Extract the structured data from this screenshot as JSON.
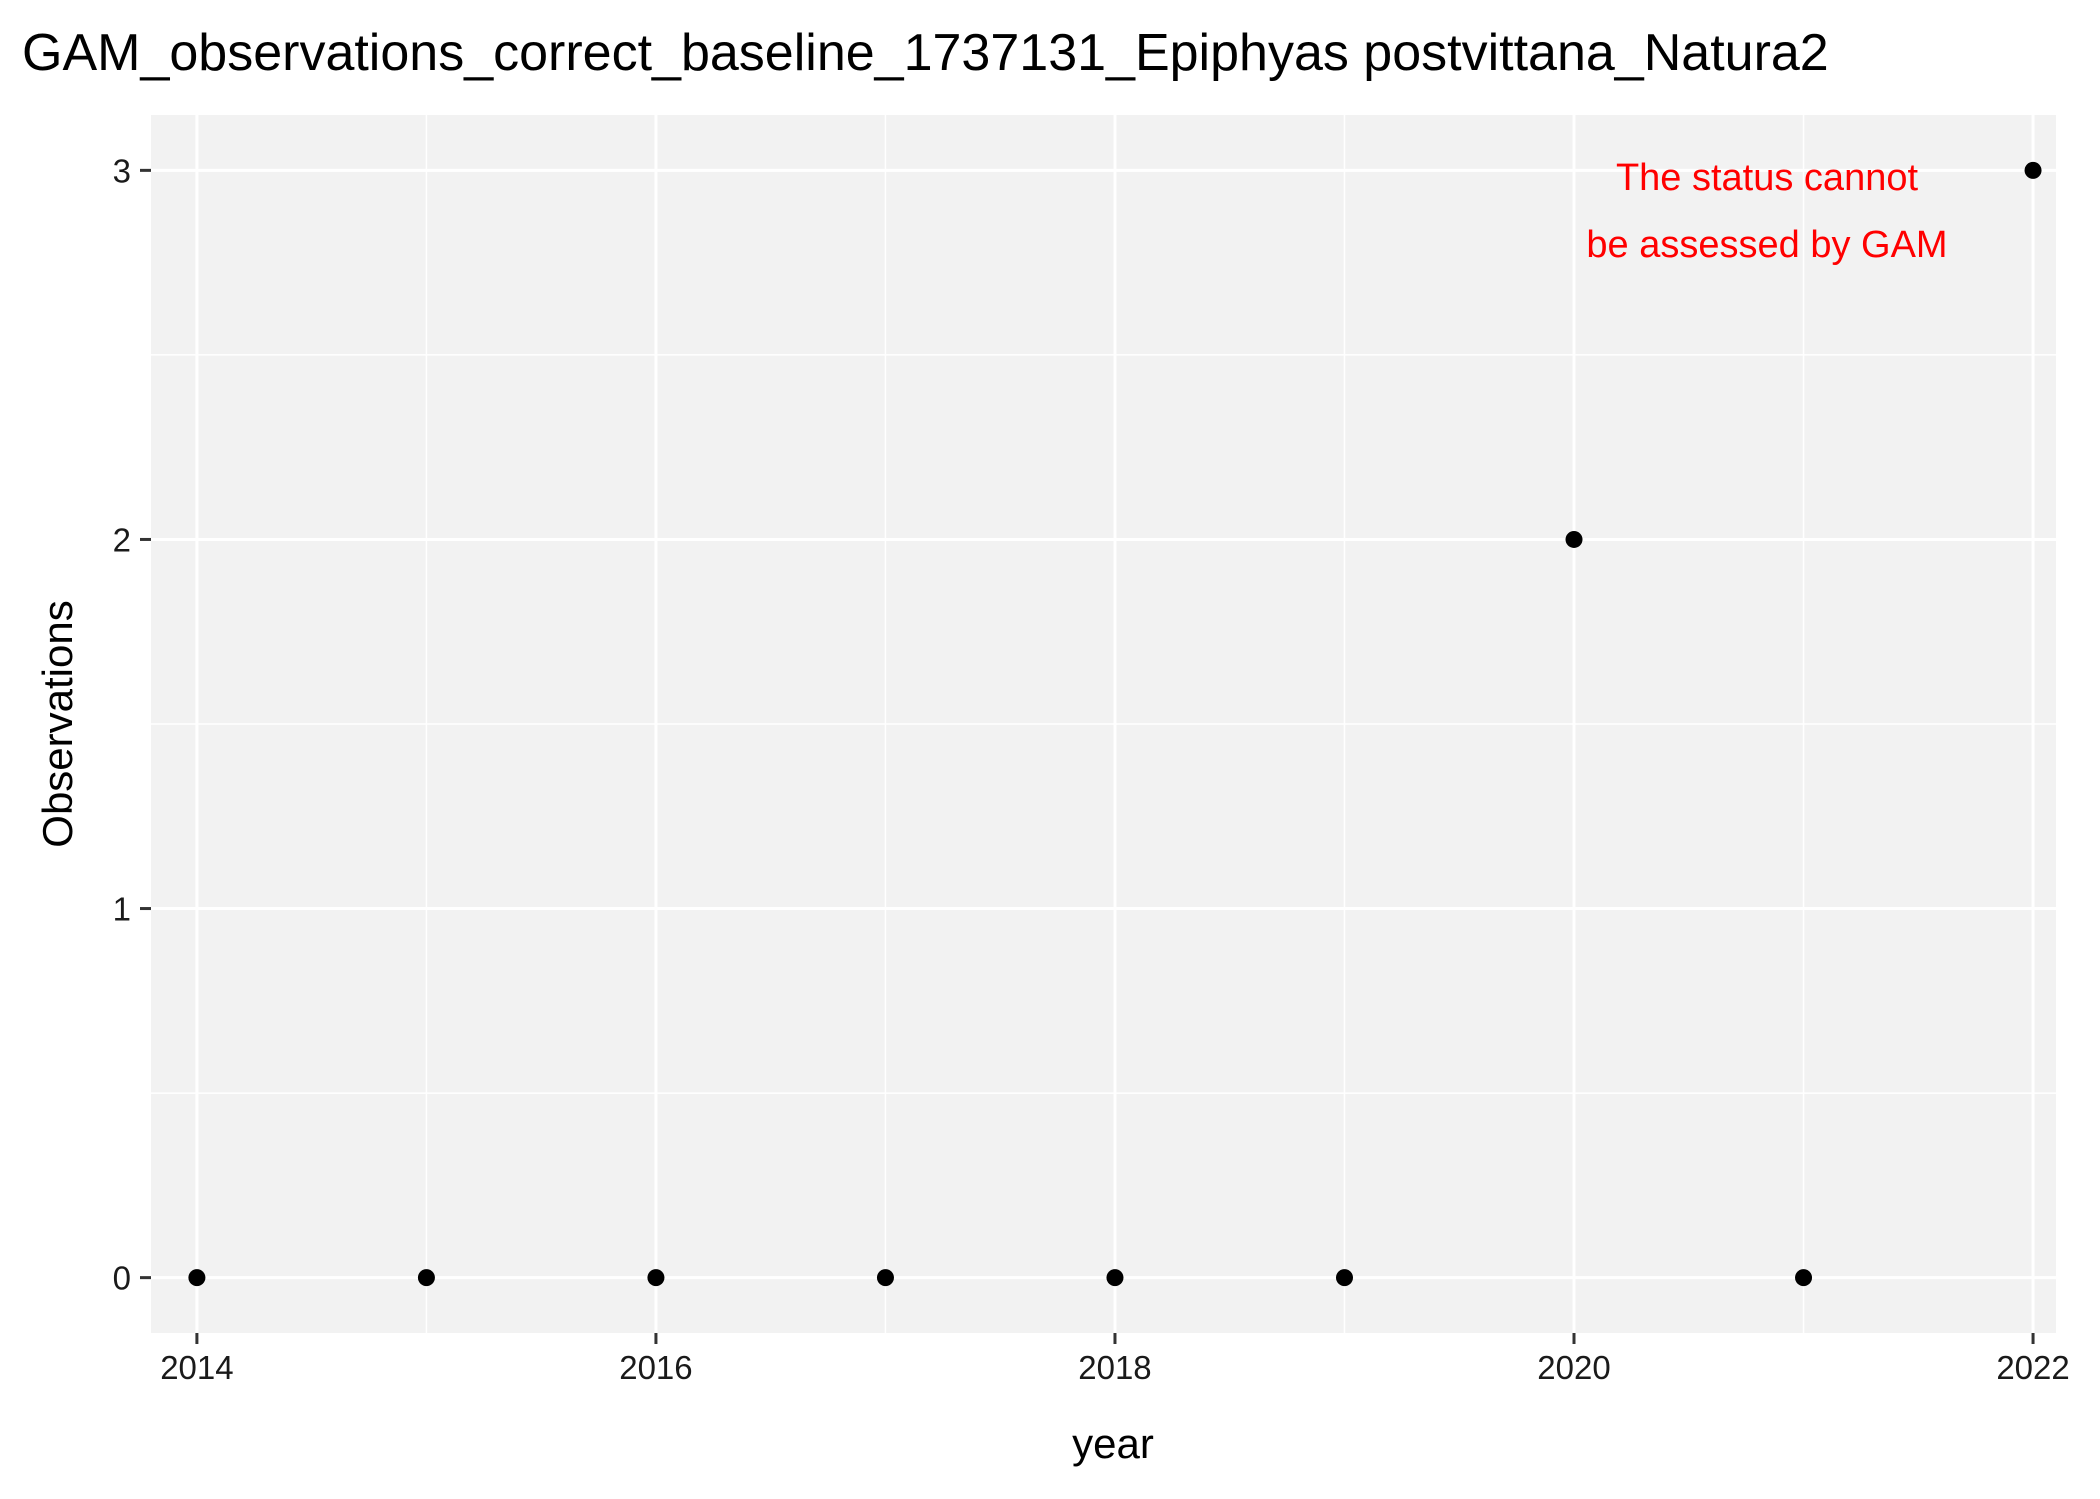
{
  "chart_data": {
    "type": "scatter",
    "title": "GAM_observations_correct_baseline_1737131_Epiphyas postvittana_Natura2",
    "xlabel": "year",
    "ylabel": "Observations",
    "x_ticks": [
      "2014",
      "2016",
      "2018",
      "2020",
      "2022"
    ],
    "y_ticks": [
      "0",
      "1",
      "2",
      "3"
    ],
    "xlim": [
      2013.8,
      2022.1
    ],
    "ylim": [
      -0.15,
      3.15
    ],
    "grid": true,
    "points": [
      {
        "x": 2014,
        "y": 0
      },
      {
        "x": 2015,
        "y": 0
      },
      {
        "x": 2016,
        "y": 0
      },
      {
        "x": 2017,
        "y": 0
      },
      {
        "x": 2018,
        "y": 0
      },
      {
        "x": 2019,
        "y": 0
      },
      {
        "x": 2020,
        "y": 2
      },
      {
        "x": 2021,
        "y": 0
      },
      {
        "x": 2022,
        "y": 3
      }
    ],
    "annotation": {
      "lines": [
        "The status cannot",
        "be assessed by GAM"
      ],
      "color": "#ff0000",
      "position": "top-right"
    },
    "colors": {
      "panel_background": "#f2f2f2",
      "grid": "#ffffff",
      "point": "#000000"
    }
  }
}
